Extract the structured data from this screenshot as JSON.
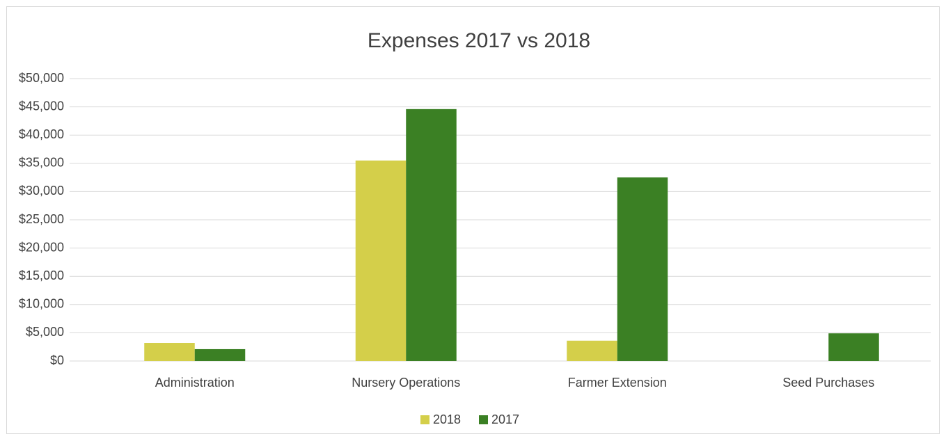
{
  "chart_data": {
    "type": "bar",
    "title": "Expenses 2017 vs 2018",
    "categories": [
      "Administration",
      "Nursery Operations",
      "Farmer Extension",
      "Seed Purchases"
    ],
    "series": [
      {
        "name": "2018",
        "color": "#d4cf4a",
        "values": [
          3200,
          35500,
          3600,
          0
        ]
      },
      {
        "name": "2017",
        "color": "#3b8024",
        "values": [
          2100,
          44600,
          32500,
          4900
        ]
      }
    ],
    "ylim": [
      0,
      50000
    ],
    "yticks": [
      {
        "value": 0,
        "label": "$0"
      },
      {
        "value": 5000,
        "label": "$5,000"
      },
      {
        "value": 10000,
        "label": "$10,000"
      },
      {
        "value": 15000,
        "label": "$15,000"
      },
      {
        "value": 20000,
        "label": "$20,000"
      },
      {
        "value": 25000,
        "label": "$25,000"
      },
      {
        "value": 30000,
        "label": "$30,000"
      },
      {
        "value": 35000,
        "label": "$35,000"
      },
      {
        "value": 40000,
        "label": "$40,000"
      },
      {
        "value": 45000,
        "label": "$45,000"
      },
      {
        "value": 50000,
        "label": "$50,000"
      }
    ],
    "grid": true,
    "legend": "bottom"
  }
}
